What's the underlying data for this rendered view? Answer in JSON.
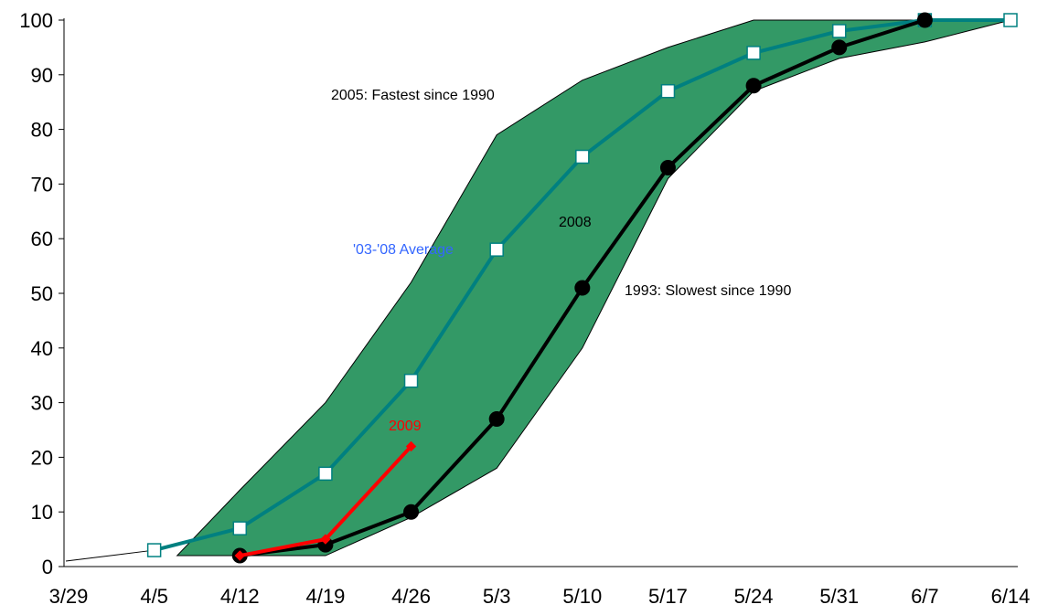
{
  "chart_data": {
    "type": "line",
    "x_categories": [
      "3/29",
      "4/5",
      "4/12",
      "4/19",
      "4/26",
      "5/3",
      "5/10",
      "5/17",
      "5/24",
      "5/31",
      "6/7",
      "6/14"
    ],
    "ylim": [
      0,
      100
    ],
    "yticks": [
      0,
      10,
      20,
      30,
      40,
      50,
      60,
      70,
      80,
      90,
      100
    ],
    "grid": false,
    "range_band": {
      "color": "#339966",
      "upper_label": "2005: Fastest since 1990",
      "lower_label": "1993:  Slowest since 1990",
      "upper": [
        null,
        null,
        14,
        30,
        52,
        79,
        89,
        95,
        100,
        100,
        100,
        100
      ],
      "lower": [
        null,
        null,
        2,
        2,
        9,
        18,
        40,
        71,
        87,
        93,
        96,
        100
      ]
    },
    "series": [
      {
        "name": "'03-'08 Average",
        "color": "#008080",
        "label_color": "#3366ff",
        "marker": "square",
        "values": [
          null,
          3,
          7,
          17,
          34,
          58,
          75,
          87,
          94,
          98,
          100,
          100
        ]
      },
      {
        "name": "2008",
        "color": "#000000",
        "label_color": "#000000",
        "marker": "circle",
        "values": [
          null,
          null,
          2,
          4,
          10,
          27,
          51,
          73,
          88,
          95,
          100,
          null
        ]
      },
      {
        "name": "2009",
        "color": "#ff0000",
        "label_color": "#ff0000",
        "marker": "diamond",
        "values": [
          null,
          null,
          2,
          5,
          22,
          null,
          null,
          null,
          null,
          null,
          null,
          null
        ]
      }
    ],
    "lead_line": {
      "color": "#000000",
      "points": [
        [
          0,
          1
        ],
        [
          1,
          3
        ]
      ]
    }
  }
}
